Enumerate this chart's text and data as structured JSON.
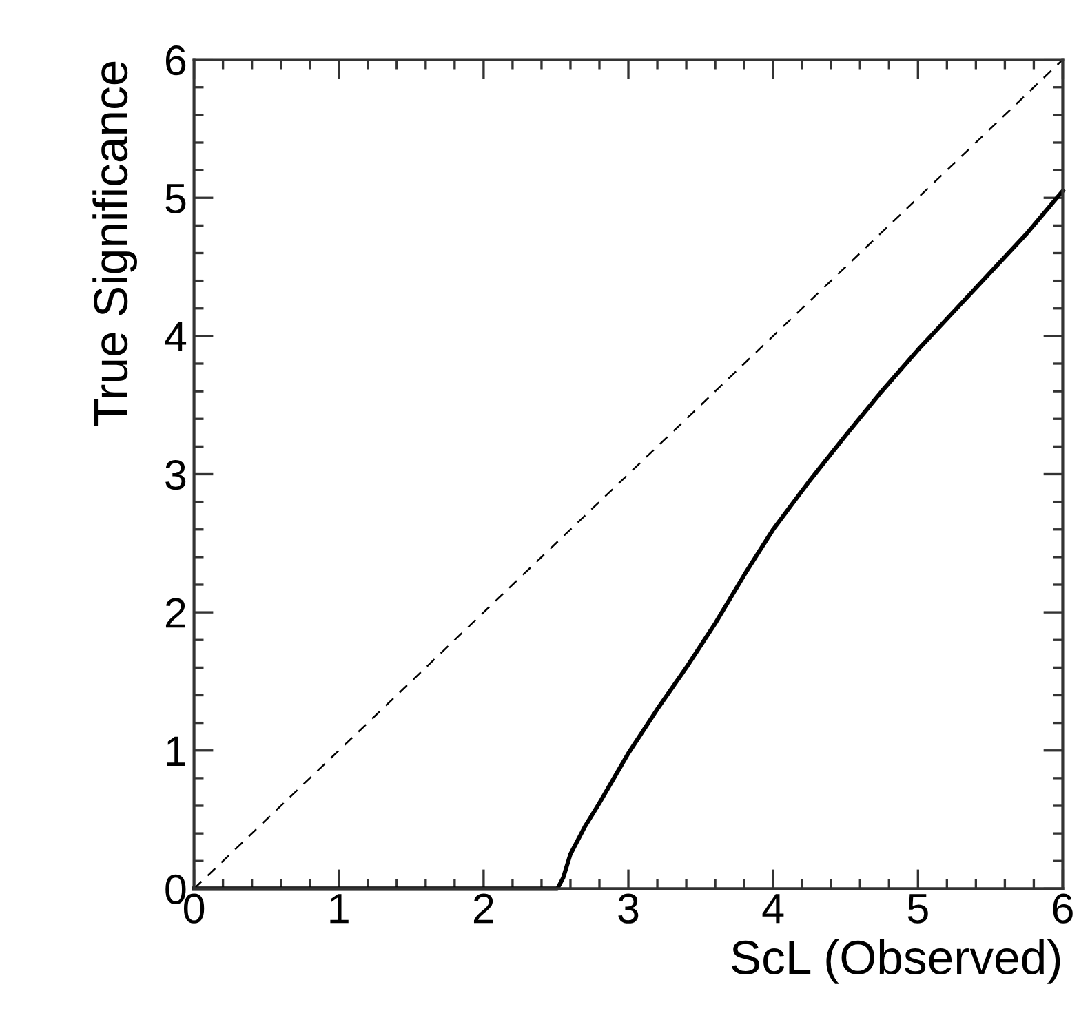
{
  "chart_data": {
    "type": "line",
    "xlabel": "ScL (Observed)",
    "ylabel": "True Significance",
    "xlim": [
      0,
      6
    ],
    "ylim": [
      0,
      6
    ],
    "xticks": [
      0,
      1,
      2,
      3,
      4,
      5,
      6
    ],
    "yticks": [
      0,
      1,
      2,
      3,
      4,
      5,
      6
    ],
    "grid": false,
    "legend": false,
    "series": [
      {
        "color": "#000000",
        "line_style": "solid",
        "x": [
          0,
          2.51,
          2.55,
          2.6,
          2.7,
          2.8,
          2.9,
          3.0,
          3.2,
          3.4,
          3.6,
          3.8,
          4.0,
          4.25,
          4.5,
          4.75,
          5.0,
          5.25,
          5.5,
          5.75,
          6.0
        ],
        "values": [
          0,
          0,
          0.08,
          0.25,
          0.45,
          0.62,
          0.8,
          0.98,
          1.3,
          1.6,
          1.92,
          2.27,
          2.6,
          2.95,
          3.28,
          3.6,
          3.9,
          4.18,
          4.46,
          4.74,
          5.05
        ]
      },
      {
        "color": "#000000",
        "line_style": "dashed",
        "x": [
          0,
          6
        ],
        "values": [
          0,
          6
        ]
      }
    ]
  }
}
